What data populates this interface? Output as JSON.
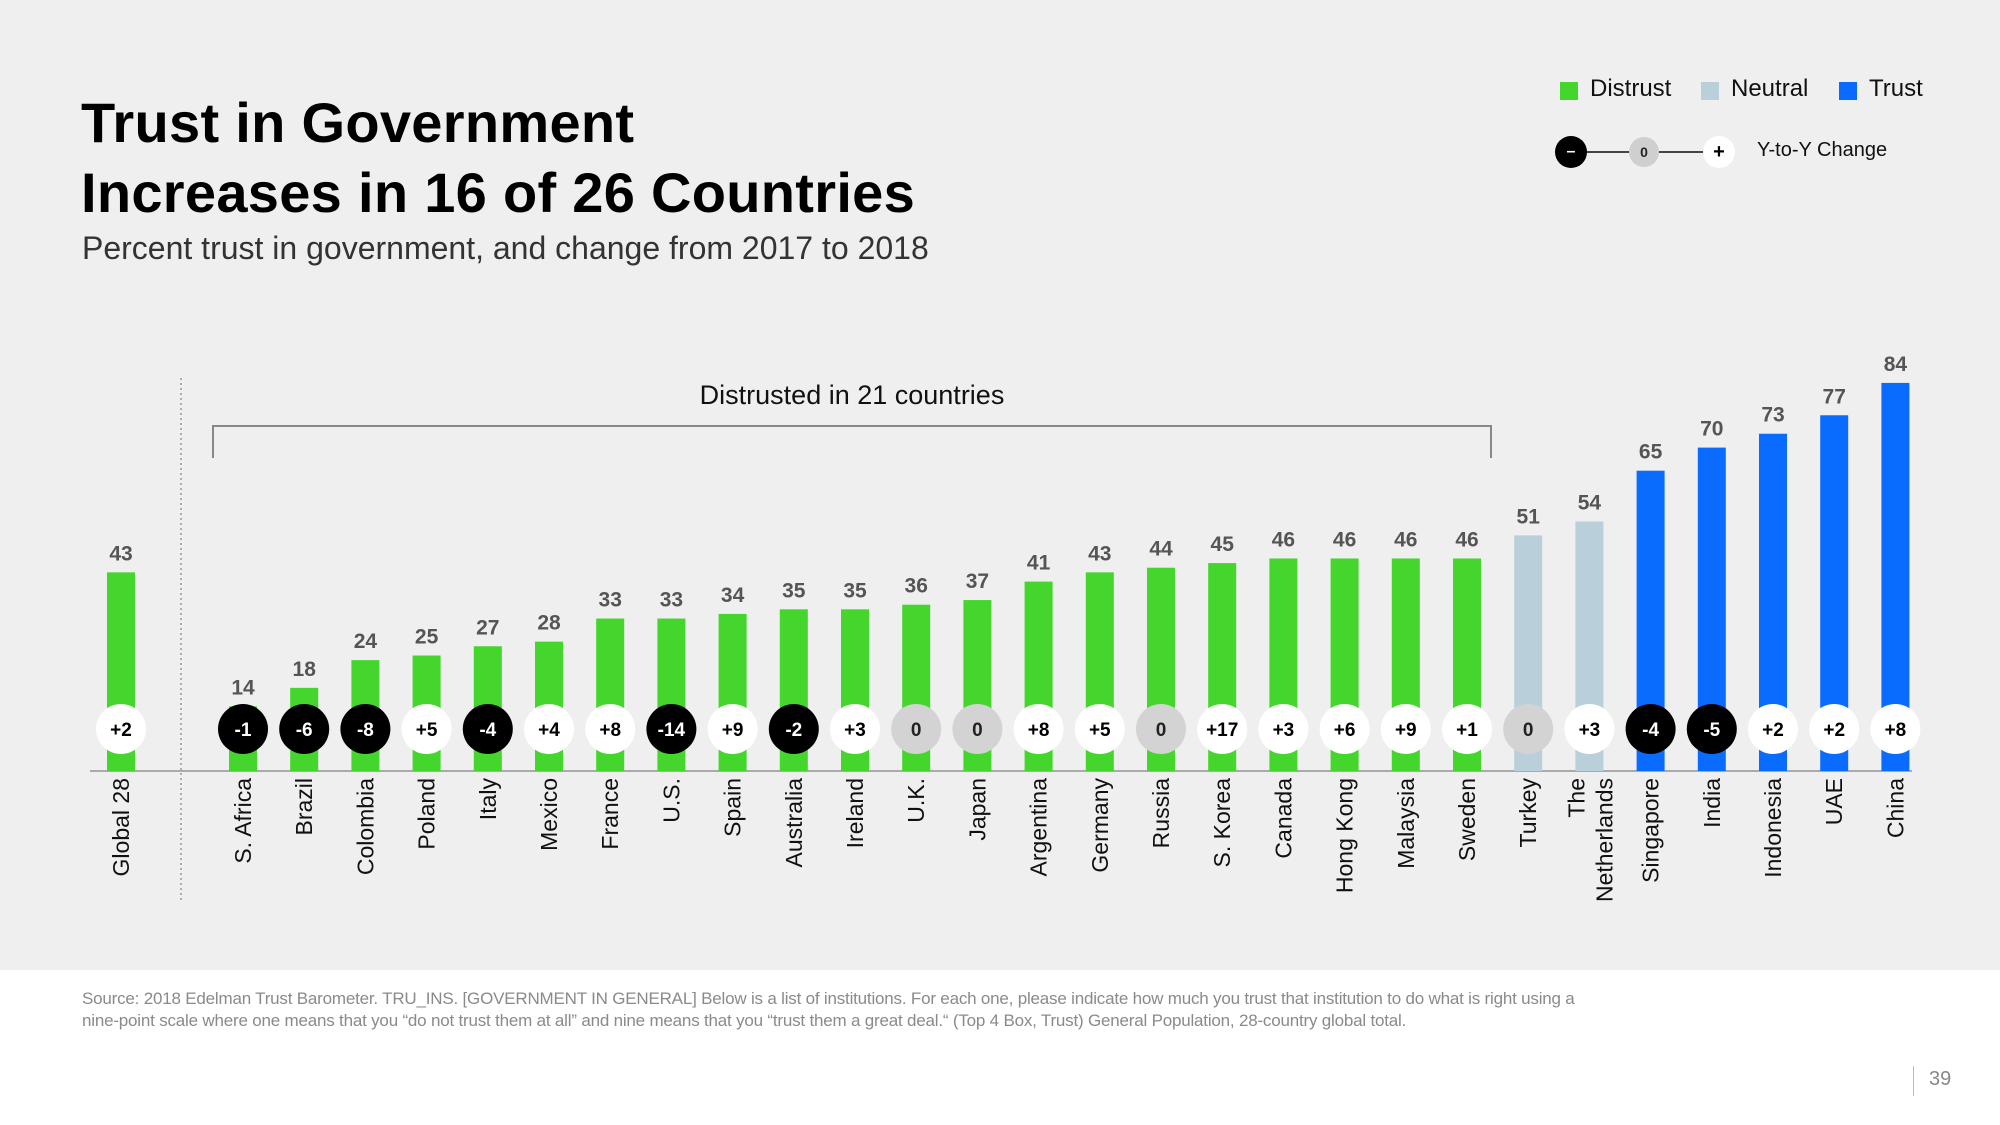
{
  "title_line1": "Trust in Government",
  "title_line2": "Increases in 16 of 26 Countries",
  "subtitle": "Percent trust in government, and change from 2017 to 2018",
  "legend": [
    {
      "label": "Distrust",
      "color": "#44d62c"
    },
    {
      "label": "Neutral",
      "color": "#b9d0da"
    },
    {
      "label": "Trust",
      "color": "#0a6cff"
    }
  ],
  "yoy_legend": {
    "minus": "–",
    "zero": "0",
    "plus": "+",
    "label": "Y-to-Y Change"
  },
  "bracket_label": "Distrusted in 21 countries",
  "source": "Source: 2018 Edelman Trust Barometer. TRU_INS. [GOVERNMENT IN GENERAL] Below is a list of institutions. For each one, please indicate how much you trust that institution to do what is right using a nine-point scale where one means that you “do not trust them at all” and nine means that you “trust them a great deal.“ (Top 4 Box, Trust) General Population, 28-country global total.",
  "page_number": "39",
  "colors": {
    "distrust": "#44d62c",
    "neutral": "#b9d0da",
    "trust": "#0a6cff",
    "decline": "#000000",
    "no_change": "#d3d3d3",
    "increase": "#ffffff"
  },
  "chart_data": {
    "type": "bar",
    "title": "Trust in Government Increases in 16 of 26 Countries",
    "subtitle": "Percent trust in government, and change from 2017 to 2018",
    "ylim": [
      0,
      100
    ],
    "grid": false,
    "legend_position": "top-right",
    "categories": [
      "Global 28",
      "S. Africa",
      "Brazil",
      "Colombia",
      "Poland",
      "Italy",
      "Mexico",
      "France",
      "U.S.",
      "Spain",
      "Australia",
      "Ireland",
      "U.K.",
      "Japan",
      "Argentina",
      "Germany",
      "Russia",
      "S. Korea",
      "Canada",
      "Hong Kong",
      "Malaysia",
      "Sweden",
      "Turkey",
      "The Netherlands",
      "Singapore",
      "India",
      "Indonesia",
      "UAE",
      "China"
    ],
    "values": [
      43,
      14,
      18,
      24,
      25,
      27,
      28,
      33,
      33,
      34,
      35,
      35,
      36,
      37,
      41,
      43,
      44,
      45,
      46,
      46,
      46,
      46,
      51,
      54,
      65,
      70,
      73,
      77,
      84
    ],
    "changes": [
      "+2",
      "-1",
      "-6",
      "-8",
      "+5",
      "-4",
      "+4",
      "+8",
      "-14",
      "+9",
      "-2",
      "+3",
      "0",
      "0",
      "+8",
      "+5",
      "0",
      "+17",
      "+3",
      "+6",
      "+9",
      "+1",
      "0",
      "+3",
      "-4",
      "-5",
      "+2",
      "+2",
      "+8"
    ],
    "groups": [
      "distrust",
      "distrust",
      "distrust",
      "distrust",
      "distrust",
      "distrust",
      "distrust",
      "distrust",
      "distrust",
      "distrust",
      "distrust",
      "distrust",
      "distrust",
      "distrust",
      "distrust",
      "distrust",
      "distrust",
      "distrust",
      "distrust",
      "distrust",
      "distrust",
      "distrust",
      "neutral",
      "neutral",
      "trust",
      "trust",
      "trust",
      "trust",
      "trust"
    ]
  }
}
